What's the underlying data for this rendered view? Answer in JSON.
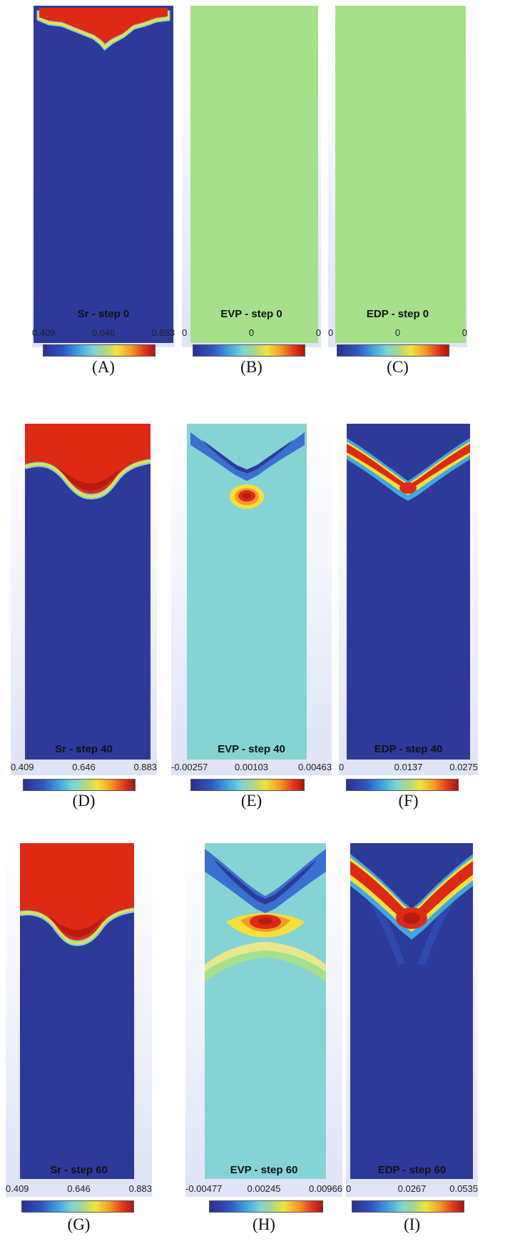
{
  "panels": [
    {
      "title": "Sr - step 0",
      "ticks": [
        "0.409",
        "0.646",
        "0.883"
      ],
      "caption": "(A)"
    },
    {
      "title": "EVP - step 0",
      "ticks": [
        "0",
        "0",
        "0"
      ],
      "caption": "(B)"
    },
    {
      "title": "EDP - step 0",
      "ticks": [
        "0",
        "0",
        "0"
      ],
      "caption": "(C)"
    },
    {
      "title": "Sr - step 40",
      "ticks": [
        "0.409",
        "0.646",
        "0.883"
      ],
      "caption": "(D)"
    },
    {
      "title": "EVP - step 40",
      "ticks": [
        "-0.00257",
        "0.00103",
        "0.00463"
      ],
      "caption": "(E)"
    },
    {
      "title": "EDP - step 40",
      "ticks": [
        "0",
        "0.0137",
        "0.0275"
      ],
      "caption": "(F)"
    },
    {
      "title": "Sr - step 60",
      "ticks": [
        "0.409",
        "0.646",
        "0.883"
      ],
      "caption": "(G)"
    },
    {
      "title": "EVP - step 60",
      "ticks": [
        "-0.00477",
        "0.00245",
        "0.00966"
      ],
      "caption": "(H)"
    },
    {
      "title": "EDP - step 60",
      "ticks": [
        "0",
        "0.0267",
        "0.0535"
      ],
      "caption": "(I)"
    }
  ],
  "colors": {
    "background_blue": "#2e3a9a",
    "background_green": "#a6e08a",
    "background_cyan": "#86d3d4",
    "red": "#dd2a14",
    "dark_red": "#b91b10",
    "yellow": "#f5e03a"
  }
}
